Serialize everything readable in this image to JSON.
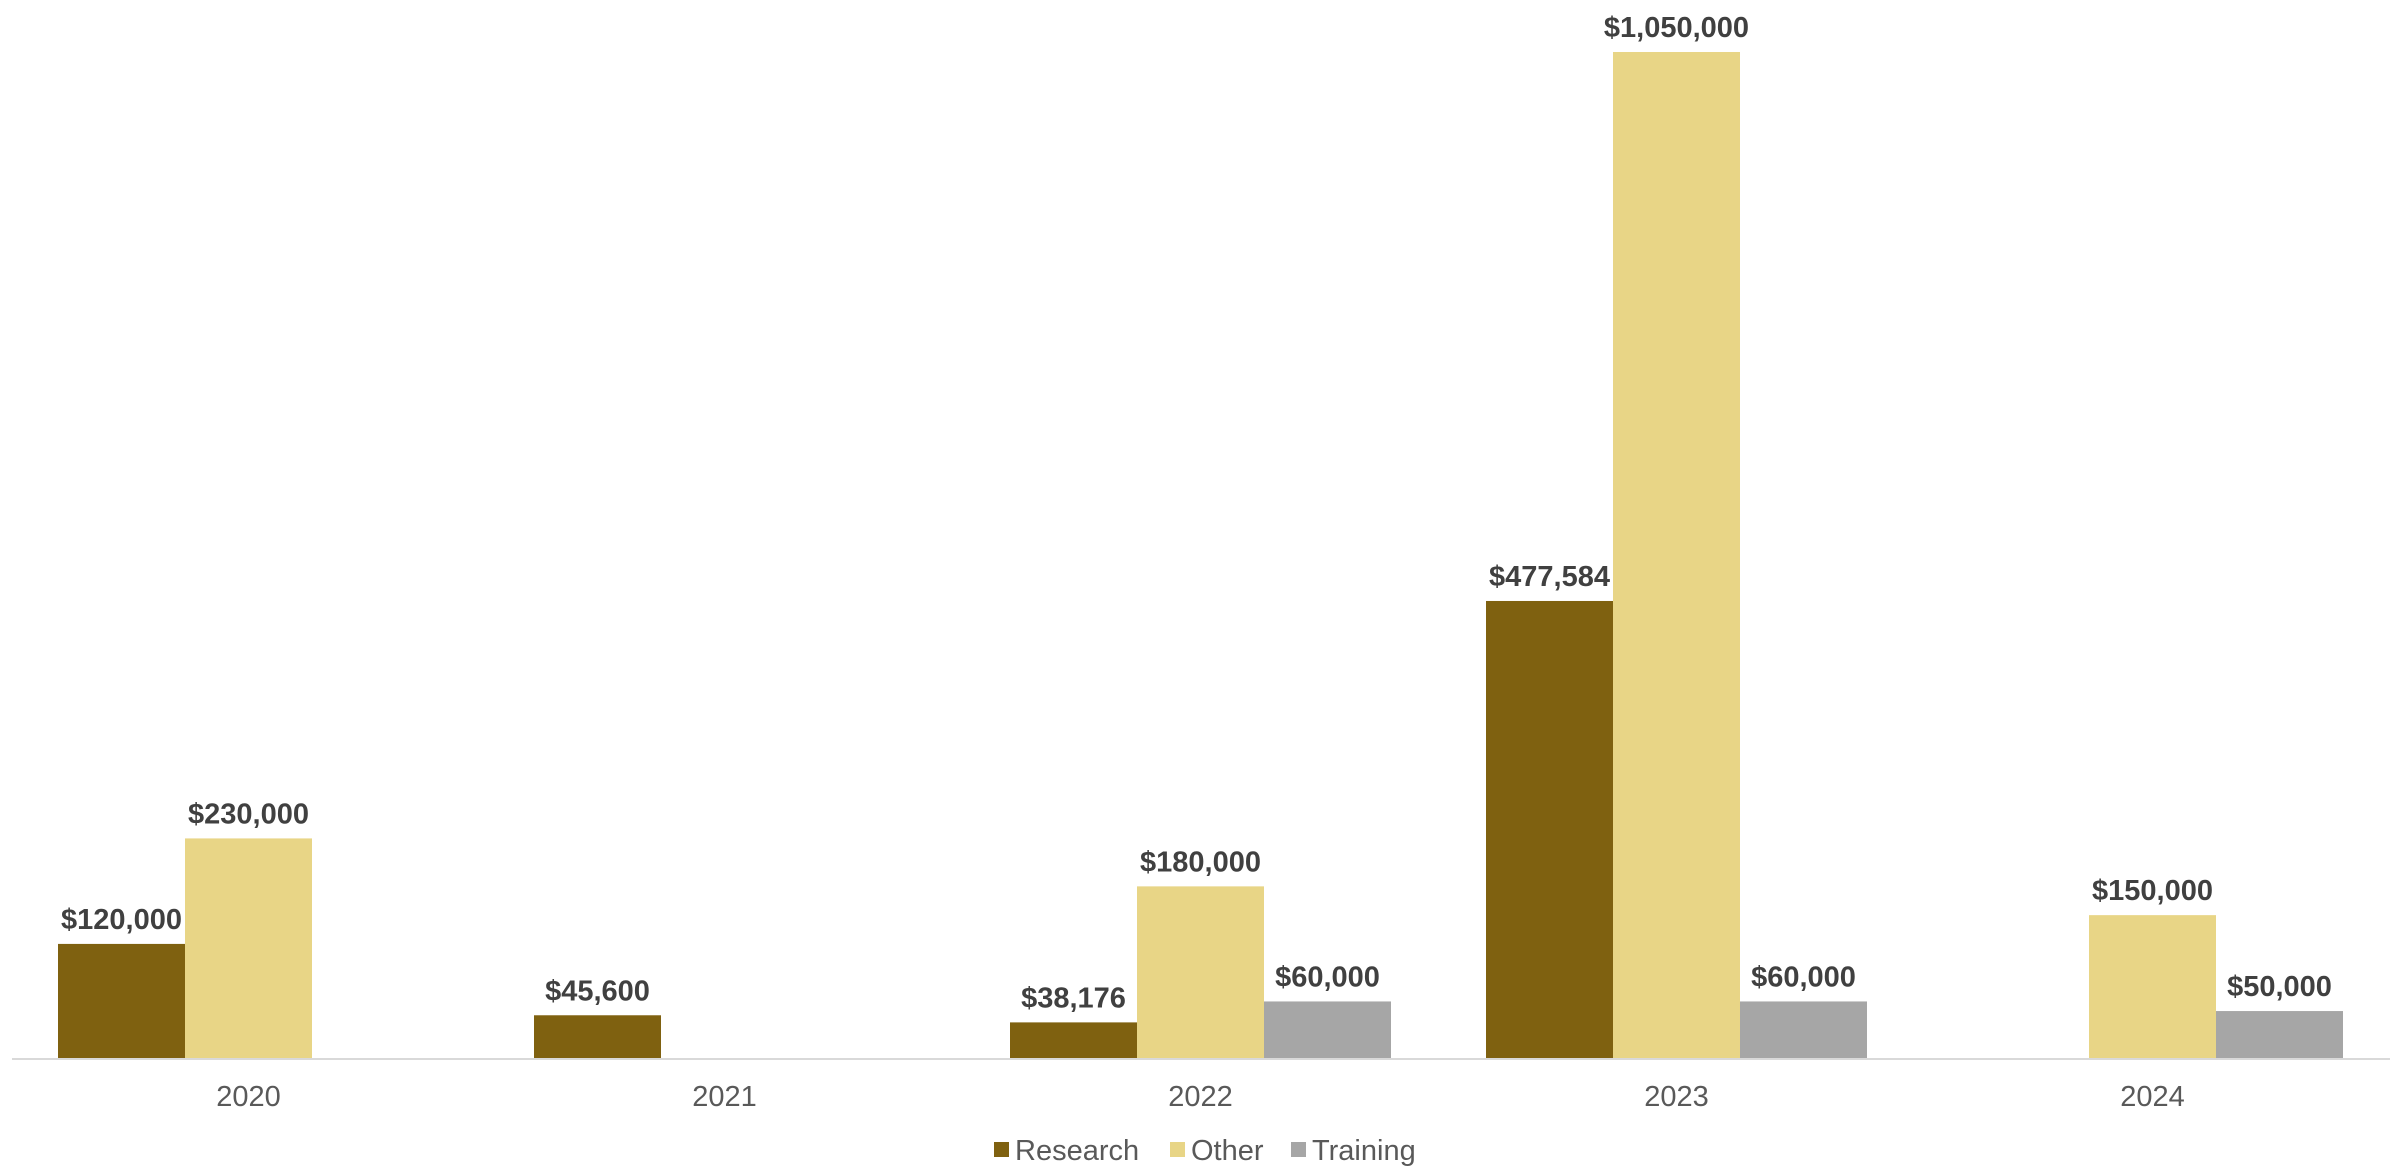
{
  "chart_data": {
    "type": "bar",
    "categories": [
      "2020",
      "2021",
      "2022",
      "2023",
      "2024"
    ],
    "series": [
      {
        "name": "Research",
        "color": "#7F6110",
        "values": [
          120000,
          45600,
          38176,
          477584,
          null
        ],
        "labels": [
          "$120,000",
          "$45,600",
          "$38,176",
          "$477,584",
          null
        ]
      },
      {
        "name": "Other",
        "color": "#E8D586",
        "values": [
          230000,
          null,
          180000,
          1050000,
          150000
        ],
        "labels": [
          "$230,000",
          null,
          "$180,000",
          "$1,050,000",
          "$150,000"
        ]
      },
      {
        "name": "Training",
        "color": "#A6A6A6",
        "values": [
          null,
          null,
          60000,
          60000,
          50000
        ],
        "labels": [
          null,
          null,
          "$60,000",
          "$60,000",
          "$50,000"
        ]
      }
    ],
    "ylim": [
      0,
      1050000
    ],
    "grid": false,
    "legend": "bottom",
    "axis_color": "#D9D9D9",
    "label_color": "#404040",
    "tick_color": "#595959"
  }
}
